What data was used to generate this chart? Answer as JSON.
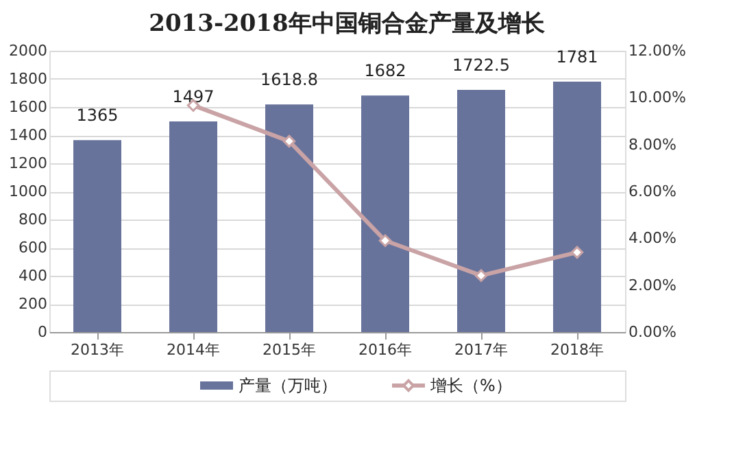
{
  "chart_data": {
    "type": "bar",
    "title": "2013-2018年中国铜合金产量及增长",
    "categories": [
      "2013年",
      "2014年",
      "2015年",
      "2016年",
      "2017年",
      "2018年"
    ],
    "series": [
      {
        "name": "产量（万吨）",
        "color": "#68739b",
        "values": [
          1365,
          1497,
          1618.8,
          1682,
          1722.5,
          1781
        ],
        "value_labels": [
          "1365",
          "1497",
          "1618.8",
          "1682",
          "1722.5",
          "1781"
        ]
      },
      {
        "name": "增长（%）",
        "type": "line",
        "axis": "y2",
        "color": "#c9a3a5",
        "marker": "diamond",
        "values": [
          null,
          9.67,
          8.14,
          3.9,
          2.41,
          3.4
        ]
      }
    ],
    "ylim": [
      0,
      2000
    ],
    "yticks": [
      0,
      200,
      400,
      600,
      800,
      1000,
      1200,
      1400,
      1600,
      1800,
      2000
    ],
    "y2lim": [
      0,
      12
    ],
    "y2ticks": [
      {
        "value": 0,
        "label": "0.00%"
      },
      {
        "value": 2,
        "label": "2.00%"
      },
      {
        "value": 4,
        "label": "4.00%"
      },
      {
        "value": 6,
        "label": "6.00%"
      },
      {
        "value": 8,
        "label": "8.00%"
      },
      {
        "value": 10,
        "label": "10.00%"
      },
      {
        "value": 12,
        "label": "12.00%"
      }
    ],
    "grid": "y",
    "legend": "bottom"
  }
}
